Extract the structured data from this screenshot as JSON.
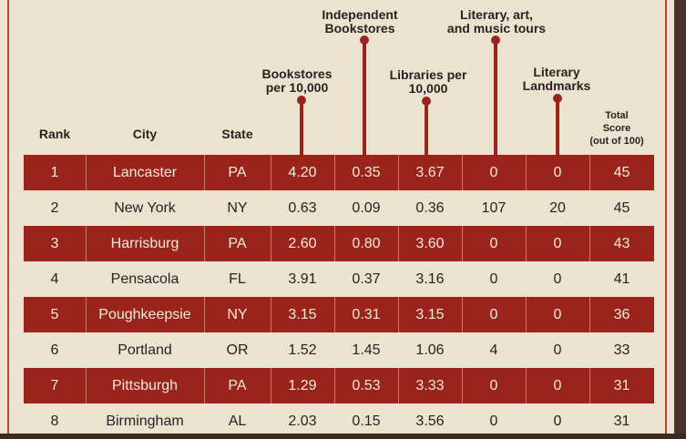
{
  "headers": {
    "rank": "Rank",
    "city": "City",
    "state": "State",
    "bookstores": "Bookstores per 10,000",
    "indie": "Independent Bookstores",
    "libraries": "Libraries per 10,000",
    "tours": "Literary, art, and music tours",
    "landmarks": "Literary Landmarks",
    "total": "Total Score (out of 100)"
  },
  "rows": [
    {
      "rank": "1",
      "city": "Lancaster",
      "state": "PA",
      "bookstores": "4.20",
      "indie": "0.35",
      "libraries": "3.67",
      "tours": "0",
      "landmarks": "0",
      "total": "45"
    },
    {
      "rank": "2",
      "city": "New York",
      "state": "NY",
      "bookstores": "0.63",
      "indie": "0.09",
      "libraries": "0.36",
      "tours": "107",
      "landmarks": "20",
      "total": "45"
    },
    {
      "rank": "3",
      "city": "Harrisburg",
      "state": "PA",
      "bookstores": "2.60",
      "indie": "0.80",
      "libraries": "3.60",
      "tours": "0",
      "landmarks": "0",
      "total": "43"
    },
    {
      "rank": "4",
      "city": "Pensacola",
      "state": "FL",
      "bookstores": "3.91",
      "indie": "0.37",
      "libraries": "3.16",
      "tours": "0",
      "landmarks": "0",
      "total": "41"
    },
    {
      "rank": "5",
      "city": "Poughkeepsie",
      "state": "NY",
      "bookstores": "3.15",
      "indie": "0.31",
      "libraries": "3.15",
      "tours": "0",
      "landmarks": "0",
      "total": "36"
    },
    {
      "rank": "6",
      "city": "Portland",
      "state": "OR",
      "bookstores": "1.52",
      "indie": "1.45",
      "libraries": "1.06",
      "tours": "4",
      "landmarks": "0",
      "total": "33"
    },
    {
      "rank": "7",
      "city": "Pittsburgh",
      "state": "PA",
      "bookstores": "1.29",
      "indie": "0.53",
      "libraries": "3.33",
      "tours": "0",
      "landmarks": "0",
      "total": "31"
    },
    {
      "rank": "8",
      "city": "Birmingham",
      "state": "AL",
      "bookstores": "2.03",
      "indie": "0.15",
      "libraries": "3.56",
      "tours": "0",
      "landmarks": "0",
      "total": "31"
    }
  ],
  "colors": {
    "accent": "#9a241c",
    "paper": "#ebe2d0",
    "text": "#2a2220"
  }
}
